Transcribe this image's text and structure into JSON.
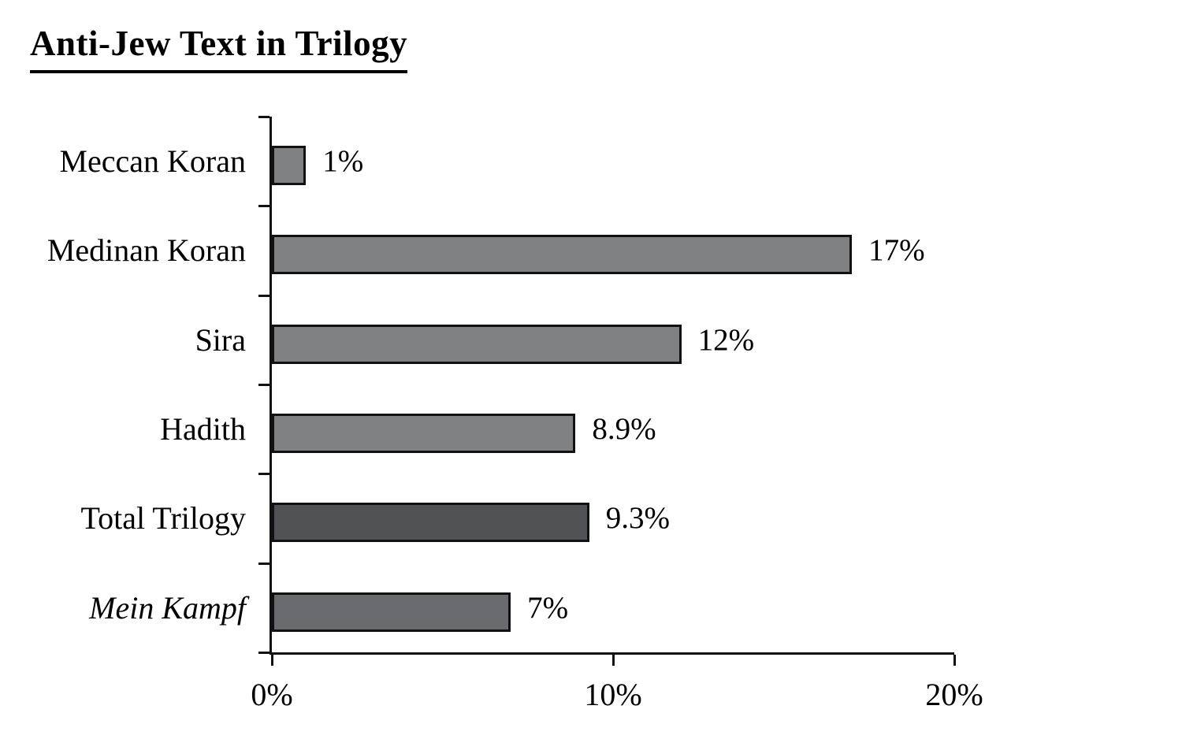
{
  "chart_data": {
    "type": "bar",
    "orientation": "horizontal",
    "title": "Anti-Jew Text in Trilogy",
    "categories": [
      "Meccan Koran",
      "Medinan Koran",
      "Sira",
      "Hadith",
      "Total Trilogy",
      "Mein Kampf"
    ],
    "values": [
      1,
      17,
      12,
      8.9,
      9.3,
      7
    ],
    "data_labels": [
      "1%",
      "17%",
      "12%",
      "8.9%",
      "9.3%",
      "7%"
    ],
    "bar_colors": [
      "#808183",
      "#808183",
      "#808183",
      "#808183",
      "#515256",
      "#696b6e"
    ],
    "bar_border_color": "#111111",
    "italic_category_indexes": [
      5
    ],
    "xlabel": "",
    "ylabel": "",
    "xlim": [
      0,
      20
    ],
    "x_tick_values": [
      0,
      10,
      20
    ],
    "x_tick_labels": [
      "0%",
      "10%",
      "20%"
    ],
    "grid": false,
    "legend": false,
    "axis_color": "#111111",
    "background_color": "#ffffff"
  }
}
